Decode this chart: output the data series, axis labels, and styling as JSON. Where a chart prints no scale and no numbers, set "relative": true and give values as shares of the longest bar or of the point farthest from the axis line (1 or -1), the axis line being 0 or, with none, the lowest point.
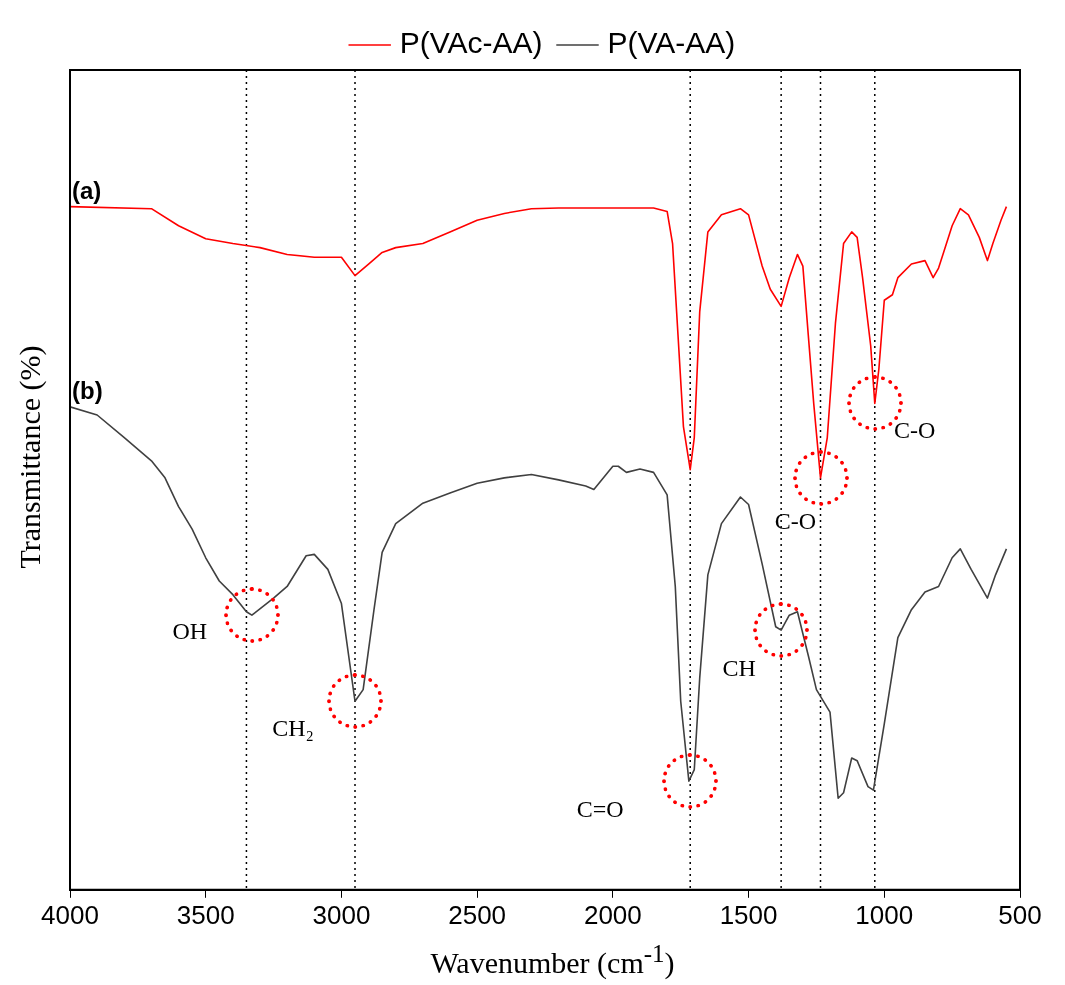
{
  "chart_data": {
    "type": "line",
    "xlabel": "Wavenumber (cm$^{-1}$)",
    "ylabel": "Transmittance (%)",
    "relative": true,
    "xlim": [
      4000,
      500
    ],
    "xticks": [
      4000,
      3500,
      3000,
      2500,
      2000,
      1500,
      1000,
      500
    ],
    "grid": false,
    "legend": "top",
    "marker": "none",
    "line_style": "solid",
    "series": [
      {
        "name": "P(VAc-AA)",
        "color": "#ff0000",
        "x": [
          4000,
          3700,
          3600,
          3500,
          3400,
          3300,
          3200,
          3100,
          3000,
          2950,
          2900,
          2850,
          2800,
          2700,
          2600,
          2500,
          2400,
          2300,
          2200,
          2000,
          1850,
          1800,
          1780,
          1760,
          1740,
          1715,
          1700,
          1680,
          1650,
          1600,
          1530,
          1500,
          1450,
          1420,
          1380,
          1350,
          1320,
          1300,
          1280,
          1260,
          1235,
          1210,
          1180,
          1150,
          1120,
          1100,
          1080,
          1050,
          1035,
          1020,
          1000,
          970,
          950,
          900,
          850,
          820,
          800,
          750,
          720,
          690,
          650,
          620,
          600,
          570,
          550
        ],
        "values": [
          1.0,
          0.997,
          0.972,
          0.953,
          0.946,
          0.94,
          0.93,
          0.926,
          0.926,
          0.899,
          0.916,
          0.933,
          0.94,
          0.946,
          0.963,
          0.98,
          0.99,
          0.997,
          0.998,
          0.998,
          0.998,
          0.993,
          0.946,
          0.812,
          0.678,
          0.615,
          0.662,
          0.846,
          0.963,
          0.988,
          0.997,
          0.988,
          0.913,
          0.879,
          0.854,
          0.896,
          0.93,
          0.913,
          0.812,
          0.712,
          0.603,
          0.662,
          0.829,
          0.946,
          0.963,
          0.955,
          0.896,
          0.796,
          0.712,
          0.762,
          0.863,
          0.871,
          0.896,
          0.916,
          0.921,
          0.896,
          0.91,
          0.972,
          0.997,
          0.988,
          0.955,
          0.921,
          0.946,
          0.98,
          1.0
        ]
      },
      {
        "name": "P(VA-AA)",
        "color": "#404040",
        "x": [
          4000,
          3900,
          3800,
          3700,
          3650,
          3600,
          3550,
          3500,
          3450,
          3400,
          3350,
          3330,
          3250,
          3200,
          3130,
          3100,
          3050,
          3000,
          2950,
          2920,
          2880,
          2850,
          2800,
          2700,
          2600,
          2500,
          2400,
          2300,
          2200,
          2100,
          2070,
          2000,
          1980,
          1950,
          1900,
          1850,
          1800,
          1770,
          1750,
          1720,
          1700,
          1680,
          1650,
          1600,
          1530,
          1500,
          1450,
          1400,
          1380,
          1350,
          1320,
          1280,
          1250,
          1200,
          1170,
          1150,
          1120,
          1100,
          1060,
          1040,
          1000,
          950,
          900,
          850,
          800,
          750,
          720,
          680,
          620,
          590,
          550
        ],
        "values": [
          0.707,
          0.695,
          0.662,
          0.628,
          0.603,
          0.561,
          0.528,
          0.486,
          0.452,
          0.432,
          0.407,
          0.402,
          0.427,
          0.444,
          0.489,
          0.491,
          0.469,
          0.419,
          0.276,
          0.293,
          0.41,
          0.494,
          0.536,
          0.566,
          0.581,
          0.595,
          0.603,
          0.608,
          0.6,
          0.591,
          0.586,
          0.62,
          0.62,
          0.611,
          0.616,
          0.611,
          0.578,
          0.444,
          0.276,
          0.159,
          0.176,
          0.31,
          0.461,
          0.536,
          0.575,
          0.564,
          0.477,
          0.385,
          0.38,
          0.402,
          0.407,
          0.343,
          0.293,
          0.26,
          0.134,
          0.142,
          0.193,
          0.189,
          0.151,
          0.146,
          0.243,
          0.369,
          0.41,
          0.436,
          0.444,
          0.486,
          0.499,
          0.469,
          0.427,
          0.461,
          0.499
        ]
      }
    ],
    "ref_lines": [
      {
        "axis": "x",
        "value": 3350,
        "color": "#000000",
        "line_style": "dotted"
      },
      {
        "axis": "x",
        "value": 2950,
        "color": "#000000",
        "line_style": "dotted"
      },
      {
        "axis": "x",
        "value": 1715,
        "color": "#000000",
        "line_style": "dotted"
      },
      {
        "axis": "x",
        "value": 1380,
        "color": "#000000",
        "line_style": "dotted"
      },
      {
        "axis": "x",
        "value": 1235,
        "color": "#000000",
        "line_style": "dotted"
      },
      {
        "axis": "x",
        "value": 1035,
        "color": "#000000",
        "line_style": "dotted"
      }
    ],
    "annotations": [
      "(a)",
      "(b)",
      {
        "text": "OH",
        "x": 3330,
        "y": 0.402
      },
      {
        "text": "CH₂",
        "x": 2950,
        "y": 0.276
      },
      {
        "text": "C=O",
        "x": 1715,
        "y": 0.159
      },
      {
        "text": "CH",
        "x": 1380,
        "y": 0.38
      },
      {
        "text": "C-O",
        "x": 1235,
        "y": 0.603
      },
      {
        "text": "C-O",
        "x": 1035,
        "y": 0.712
      }
    ]
  }
}
